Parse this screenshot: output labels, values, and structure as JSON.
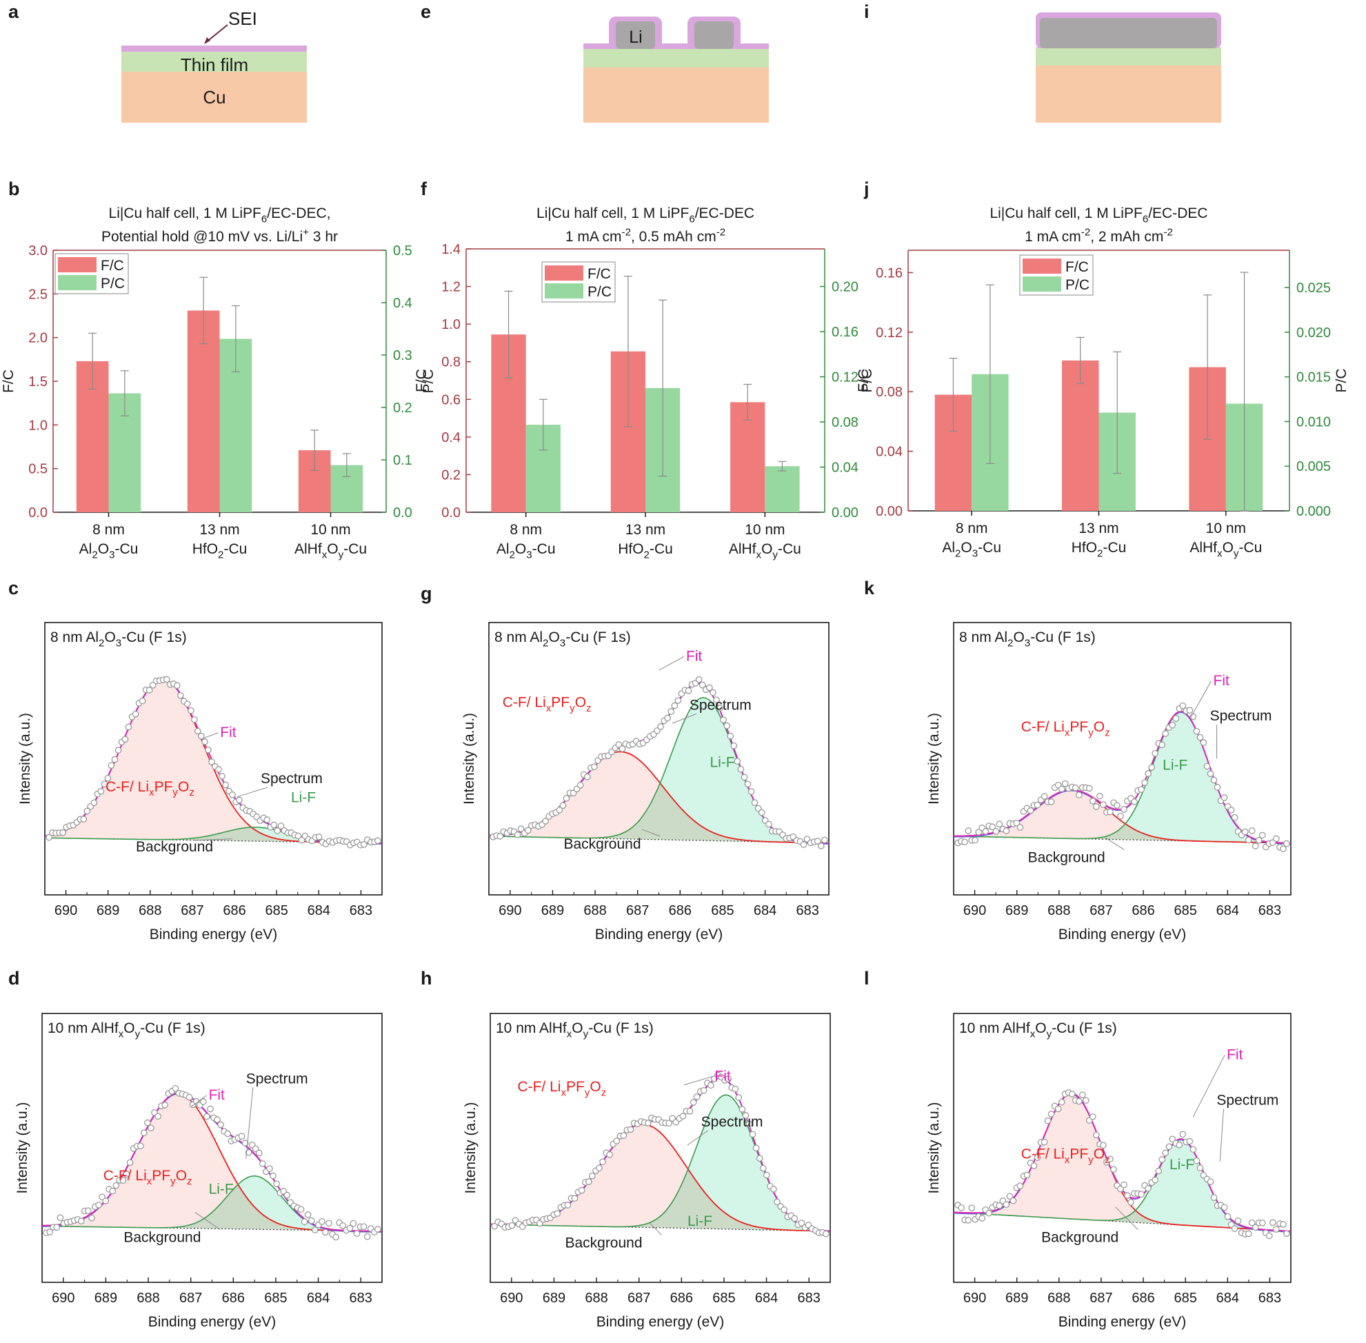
{
  "panel_letters": [
    "a",
    "b",
    "c",
    "d",
    "e",
    "f",
    "g",
    "h",
    "i",
    "j",
    "k",
    "l"
  ],
  "schematic": {
    "sei_label": "SEI",
    "film_label": "Thin film",
    "cu_label": "Cu",
    "li_label": "Li",
    "colors": {
      "sei": "#d9a6dd",
      "film": "#c8e4b4",
      "cu": "#f7c9a6",
      "li": "#a8a6a6"
    }
  },
  "chart_data": [
    {
      "panel": "b",
      "type": "bar",
      "title_lines": [
        "Li|Cu half cell, 1 M LiPF6/EC-DEC,",
        "Potential hold @10 mV vs. Li/Li+ 3 hr"
      ],
      "categories": [
        [
          "8 nm",
          "Al2O3-Cu"
        ],
        [
          "13 nm",
          "HfO2-Cu"
        ],
        [
          "10 nm",
          "AlHfxOy-Cu"
        ]
      ],
      "ylabel": "F/C",
      "ylabel2": "P/C",
      "ylim": [
        0,
        3.0
      ],
      "ylim2": [
        0,
        0.5
      ],
      "yticks": [
        0.0,
        0.5,
        1.0,
        1.5,
        2.0,
        2.5,
        3.0
      ],
      "yticks2": [
        0.0,
        0.1,
        0.2,
        0.3,
        0.4,
        0.5
      ],
      "legend": "top-left",
      "series": [
        {
          "name": "F/C",
          "axis": "left",
          "color": "#ef7b7b",
          "values": [
            1.73,
            2.31,
            0.71
          ],
          "errors": [
            0.32,
            0.38,
            0.23
          ]
        },
        {
          "name": "P/C",
          "axis": "right",
          "color": "#97d8a0",
          "values": [
            0.227,
            0.331,
            0.09
          ],
          "errors": [
            0.043,
            0.063,
            0.022
          ]
        }
      ]
    },
    {
      "panel": "f",
      "type": "bar",
      "title_lines": [
        "Li|Cu half cell, 1 M LiPF6/EC-DEC",
        "1 mA cm-2, 0.5 mAh cm-2"
      ],
      "categories": [
        [
          "8 nm",
          "Al2O3-Cu"
        ],
        [
          "13 nm",
          "HfO2-Cu"
        ],
        [
          "10 nm",
          "AlHfxOy-Cu"
        ]
      ],
      "ylabel": "F/C",
      "ylabel2": "P/C",
      "ylim": [
        0,
        1.4
      ],
      "ylim2": [
        0,
        0.2333
      ],
      "yticks": [
        0.0,
        0.2,
        0.4,
        0.6,
        0.8,
        1.0,
        1.2,
        1.4
      ],
      "yticks2": [
        0.0,
        0.04,
        0.08,
        0.12,
        0.16,
        0.2
      ],
      "legend": "top-left",
      "series": [
        {
          "name": "F/C",
          "axis": "left",
          "color": "#ef7b7b",
          "values": [
            0.945,
            0.855,
            0.585
          ],
          "errors": [
            0.23,
            0.4,
            0.095
          ]
        },
        {
          "name": "P/C",
          "axis": "right",
          "color": "#97d8a0",
          "values": [
            0.0775,
            0.11,
            0.0408
          ],
          "errors": [
            0.0225,
            0.078,
            0.0042
          ]
        }
      ]
    },
    {
      "panel": "j",
      "type": "bar",
      "title_lines": [
        "Li|Cu half cell, 1 M LiPF6/EC-DEC",
        "1 mA cm-2, 2 mAh cm-2"
      ],
      "categories": [
        [
          "8 nm",
          "Al2O3-Cu"
        ],
        [
          "13 nm",
          "HfO2-Cu"
        ],
        [
          "10 nm",
          "AlHfxOy-Cu"
        ]
      ],
      "ylabel": "F/C",
      "ylabel2": "P/C",
      "ylim": [
        0,
        0.175
      ],
      "ylim2": [
        0,
        0.02917
      ],
      "yticks": [
        0.0,
        0.04,
        0.08,
        0.12,
        0.16
      ],
      "yticks2": [
        0.0,
        0.005,
        0.01,
        0.015,
        0.02,
        0.025
      ],
      "legend": "top-left",
      "series": [
        {
          "name": "F/C",
          "axis": "left",
          "color": "#ef7b7b",
          "values": [
            0.078,
            0.101,
            0.0965
          ],
          "errors": [
            0.0245,
            0.0155,
            0.0485
          ],
          "err_up": [
            0.0245,
            0.0155,
            0.0485
          ]
        },
        {
          "name": "P/C",
          "axis": "right",
          "color": "#97d8a0",
          "values": [
            0.0153,
            0.011,
            0.012
          ],
          "errors": [
            0.01,
            0.0068,
            0.0147
          ]
        }
      ]
    },
    {
      "panel": "c",
      "type": "line",
      "sample": "8 nm Al2O3-Cu (F 1s)",
      "xlabel": "Binding energy (eV)",
      "ylabel": "Intensity (a.u.)",
      "xlim": [
        690.5,
        682.5
      ],
      "xticks": [
        690,
        689,
        688,
        687,
        686,
        685,
        684,
        683
      ],
      "series": [
        {
          "name": "C-F/ LixPFyOz",
          "center": 687.7,
          "height": 0.92,
          "sigma": 0.95
        },
        {
          "name": "Li-F",
          "center": 685.5,
          "height": 0.08,
          "sigma": 0.75
        }
      ],
      "background": [
        0.03,
        0.0
      ],
      "labels": {
        "fit": "Fit",
        "spectrum": "Spectrum",
        "background": "Background",
        "cf": "C-F/ LixPFyOz",
        "lif": "Li-F"
      }
    },
    {
      "panel": "d",
      "type": "line",
      "sample": "10 nm AlHfxOy-Cu (F 1s)",
      "xlabel": "Binding energy (eV)",
      "ylabel": "Intensity (a.u.)",
      "xlim": [
        690.5,
        682.5
      ],
      "xticks": [
        690,
        689,
        688,
        687,
        686,
        685,
        684,
        683
      ],
      "series": [
        {
          "name": "C-F/ LixPFyOz",
          "center": 687.3,
          "height": 0.78,
          "sigma": 0.95
        },
        {
          "name": "Li-F",
          "center": 685.5,
          "height": 0.31,
          "sigma": 0.65
        }
      ],
      "background": [
        0.03,
        0.0
      ],
      "labels": {
        "fit": "Fit",
        "spectrum": "Spectrum",
        "background": "Background",
        "cf": "C-F/ LixPFyOz",
        "lif": "Li-F"
      }
    },
    {
      "panel": "g",
      "type": "line",
      "sample": "8 nm Al2O3-Cu (F 1s)",
      "xlabel": "Binding energy (eV)",
      "ylabel": "Intensity (a.u.)",
      "xlim": [
        690.5,
        682.5
      ],
      "xticks": [
        690,
        689,
        688,
        687,
        686,
        685,
        684,
        683
      ],
      "series": [
        {
          "name": "C-F/ LixPFyOz",
          "center": 687.4,
          "height": 0.5,
          "sigma": 1.0
        },
        {
          "name": "Li-F",
          "center": 685.45,
          "height": 0.82,
          "sigma": 0.75
        }
      ],
      "background": [
        0.04,
        0.0
      ],
      "labels": {
        "fit": "Fit",
        "spectrum": "Spectrum",
        "background": "Background",
        "cf": "C-F/ LixPFyOz",
        "lif": "Li-F"
      }
    },
    {
      "panel": "h",
      "type": "line",
      "sample": "10 nm AlHfxOy-Cu (F 1s)",
      "xlabel": "Binding energy (eV)",
      "ylabel": "Intensity (a.u.)",
      "xlim": [
        690.5,
        682.5
      ],
      "xticks": [
        690,
        689,
        688,
        687,
        686,
        685,
        684,
        683
      ],
      "series": [
        {
          "name": "C-F/ LixPFyOz",
          "center": 686.9,
          "height": 0.6,
          "sigma": 1.0
        },
        {
          "name": "Li-F",
          "center": 684.95,
          "height": 0.78,
          "sigma": 0.7
        }
      ],
      "background": [
        0.04,
        0.0
      ],
      "labels": {
        "fit": "Fit",
        "spectrum": "Spectrum",
        "background": "Background",
        "cf": "C-F/ LixPFyOz",
        "lif": "Li-F"
      }
    },
    {
      "panel": "k",
      "type": "line",
      "sample": "8 nm Al2O3-Cu (F 1s)",
      "xlabel": "Binding energy (eV)",
      "ylabel": "Intensity (a.u.)",
      "xlim": [
        690.5,
        682.5
      ],
      "xticks": [
        690,
        689,
        688,
        687,
        686,
        685,
        684,
        683
      ],
      "series": [
        {
          "name": "C-F/ LixPFyOz",
          "center": 687.7,
          "height": 0.28,
          "sigma": 0.85
        },
        {
          "name": "Li-F",
          "center": 685.1,
          "height": 0.74,
          "sigma": 0.65
        }
      ],
      "background": [
        0.04,
        0.0
      ],
      "labels": {
        "fit": "Fit",
        "spectrum": "Spectrum",
        "background": "Background",
        "cf": "C-F/ LixPFyOz",
        "lif": "Li-F"
      }
    },
    {
      "panel": "l",
      "type": "line",
      "sample": "10 nm AlHfxOy-Cu (F 1s)",
      "xlabel": "Binding energy (eV)",
      "ylabel": "Intensity (a.u.)",
      "xlim": [
        690.5,
        682.5
      ],
      "xticks": [
        690,
        689,
        688,
        687,
        686,
        685,
        684,
        683
      ],
      "series": [
        {
          "name": "C-F/ LixPFyOz",
          "center": 687.7,
          "height": 0.73,
          "sigma": 0.7
        },
        {
          "name": "Li-F",
          "center": 685.1,
          "height": 0.5,
          "sigma": 0.55
        }
      ],
      "background": [
        0.11,
        0.0
      ],
      "labels": {
        "fit": "Fit",
        "spectrum": "Spectrum",
        "background": "Background",
        "cf": "C-F/ LixPFyOz",
        "lif": "Li-F"
      }
    }
  ]
}
